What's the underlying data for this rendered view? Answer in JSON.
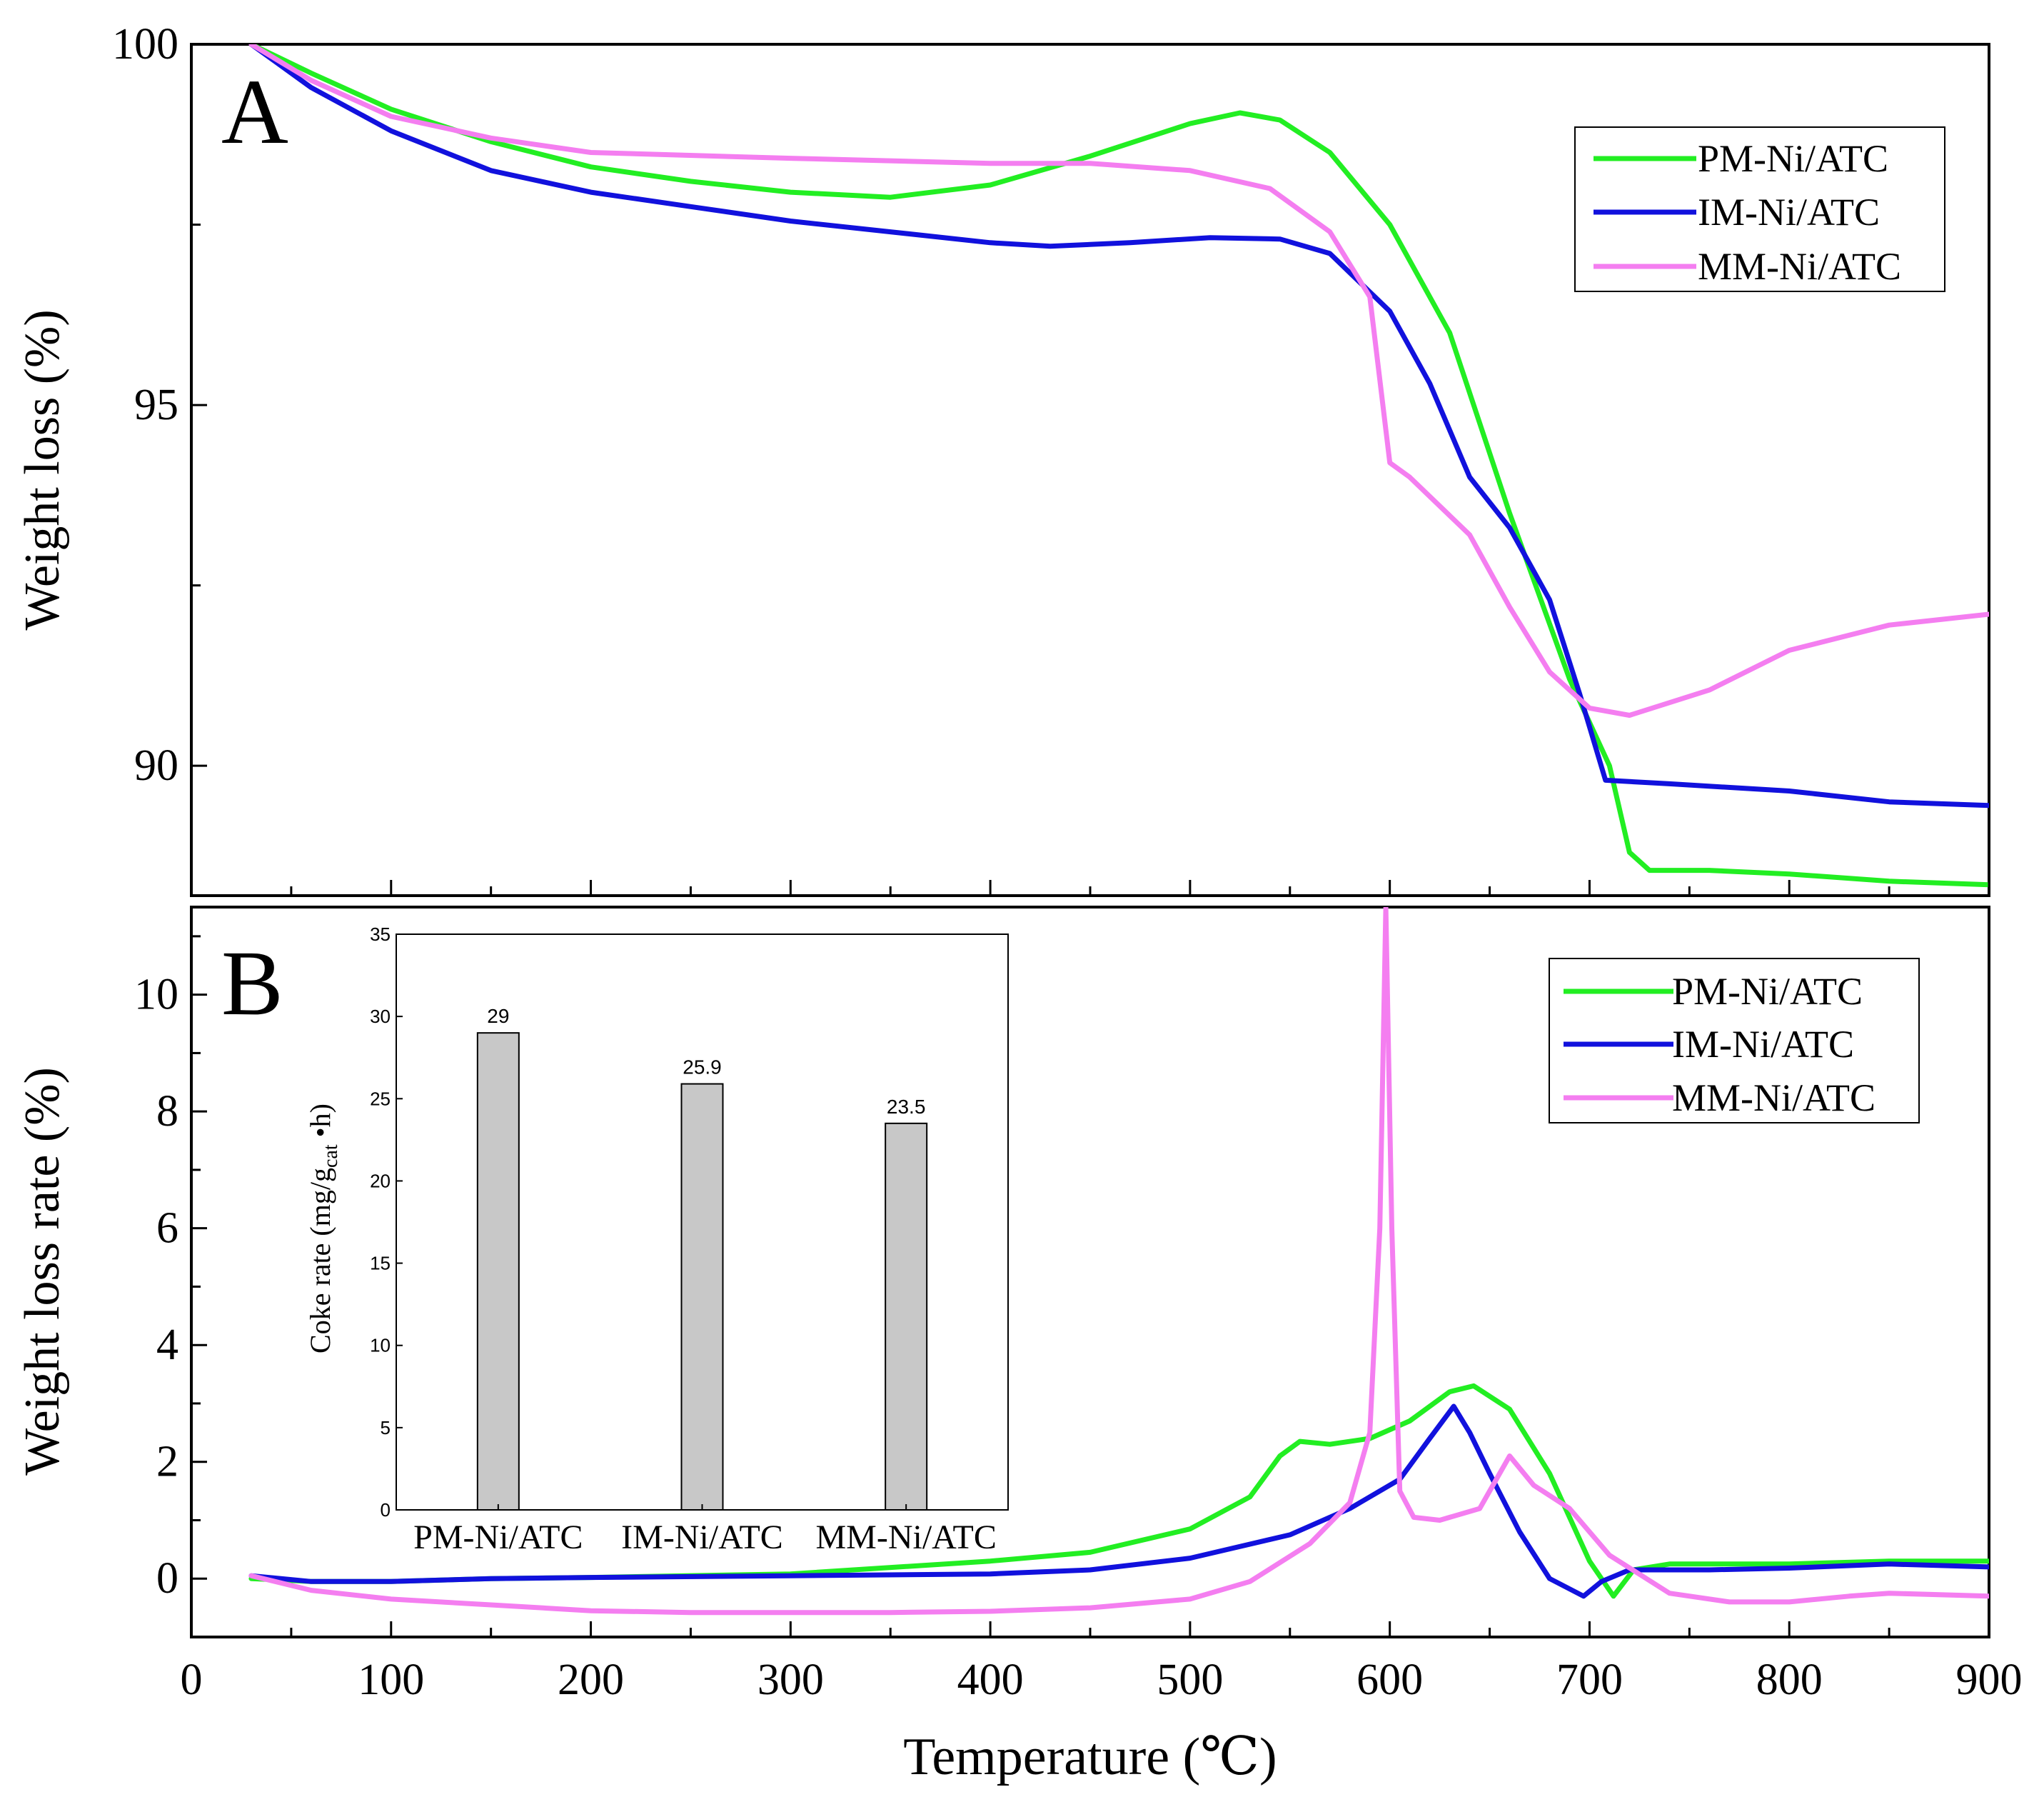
{
  "colors": {
    "pm": "#22ee22",
    "im": "#1111dd",
    "mm": "#f47ef0",
    "bar_fill": "#c8c8c8",
    "axis": "#000000"
  },
  "chart_data": [
    {
      "type": "line",
      "panel_label": "A",
      "title": "",
      "xlabel": "",
      "ylabel": "Weight loss (%)",
      "xlim": [
        0,
        900
      ],
      "ylim": [
        88.2,
        100
      ],
      "yticks": [
        "90",
        "95",
        "100"
      ],
      "legend": {
        "placement": "top-right"
      },
      "series": [
        {
          "name": "PM-Ni/ATC",
          "color_key": "pm",
          "points": [
            [
              30,
              100
            ],
            [
              60,
              99.6
            ],
            [
              100,
              99.1
            ],
            [
              150,
              98.65
            ],
            [
              200,
              98.3
            ],
            [
              250,
              98.1
            ],
            [
              300,
              97.95
            ],
            [
              350,
              97.88
            ],
            [
              400,
              98.05
            ],
            [
              450,
              98.45
            ],
            [
              500,
              98.9
            ],
            [
              525,
              99.05
            ],
            [
              545,
              98.95
            ],
            [
              570,
              98.5
            ],
            [
              600,
              97.5
            ],
            [
              630,
              96.0
            ],
            [
              660,
              93.5
            ],
            [
              690,
              91.2
            ],
            [
              710,
              90.0
            ],
            [
              720,
              88.8
            ],
            [
              730,
              88.55
            ],
            [
              760,
              88.55
            ],
            [
              800,
              88.5
            ],
            [
              850,
              88.4
            ],
            [
              900,
              88.35
            ]
          ]
        },
        {
          "name": "IM-Ni/ATC",
          "color_key": "im",
          "points": [
            [
              30,
              100
            ],
            [
              60,
              99.4
            ],
            [
              100,
              98.8
            ],
            [
              150,
              98.25
            ],
            [
              200,
              97.95
            ],
            [
              250,
              97.75
            ],
            [
              300,
              97.55
            ],
            [
              350,
              97.4
            ],
            [
              400,
              97.25
            ],
            [
              430,
              97.2
            ],
            [
              470,
              97.25
            ],
            [
              510,
              97.32
            ],
            [
              545,
              97.3
            ],
            [
              570,
              97.1
            ],
            [
              600,
              96.3
            ],
            [
              620,
              95.3
            ],
            [
              640,
              94.0
            ],
            [
              660,
              93.3
            ],
            [
              680,
              92.3
            ],
            [
              695,
              91.0
            ],
            [
              708,
              89.8
            ],
            [
              740,
              89.75
            ],
            [
              800,
              89.65
            ],
            [
              850,
              89.5
            ],
            [
              900,
              89.45
            ]
          ]
        },
        {
          "name": "MM-Ni/ATC",
          "color_key": "mm",
          "points": [
            [
              30,
              100
            ],
            [
              60,
              99.5
            ],
            [
              100,
              99.0
            ],
            [
              150,
              98.7
            ],
            [
              200,
              98.5
            ],
            [
              300,
              98.42
            ],
            [
              400,
              98.35
            ],
            [
              450,
              98.35
            ],
            [
              500,
              98.25
            ],
            [
              540,
              98.0
            ],
            [
              570,
              97.4
            ],
            [
              590,
              96.5
            ],
            [
              600,
              94.2
            ],
            [
              610,
              94.0
            ],
            [
              640,
              93.2
            ],
            [
              660,
              92.2
            ],
            [
              680,
              91.3
            ],
            [
              700,
              90.8
            ],
            [
              720,
              90.7
            ],
            [
              760,
              91.05
            ],
            [
              800,
              91.6
            ],
            [
              850,
              91.95
            ],
            [
              900,
              92.1
            ]
          ]
        }
      ]
    },
    {
      "type": "line",
      "panel_label": "B",
      "title": "",
      "xlabel": "Temperature (℃)",
      "ylabel": "Weight loss rate (%)",
      "xlim": [
        0,
        900
      ],
      "ylim": [
        -1,
        11.5
      ],
      "xticks": [
        "0",
        "100",
        "200",
        "300",
        "400",
        "500",
        "600",
        "700",
        "800",
        "900"
      ],
      "yticks": [
        "0",
        "2",
        "4",
        "6",
        "8",
        "10"
      ],
      "legend": {
        "placement": "top-right"
      },
      "series": [
        {
          "name": "PM-Ni/ATC",
          "color_key": "pm",
          "points": [
            [
              30,
              0
            ],
            [
              60,
              -0.05
            ],
            [
              100,
              -0.05
            ],
            [
              150,
              0
            ],
            [
              200,
              0.02
            ],
            [
              300,
              0.08
            ],
            [
              400,
              0.3
            ],
            [
              450,
              0.45
            ],
            [
              500,
              0.85
            ],
            [
              530,
              1.4
            ],
            [
              545,
              2.1
            ],
            [
              555,
              2.35
            ],
            [
              570,
              2.3
            ],
            [
              590,
              2.4
            ],
            [
              610,
              2.7
            ],
            [
              630,
              3.2
            ],
            [
              642,
              3.3
            ],
            [
              660,
              2.9
            ],
            [
              680,
              1.8
            ],
            [
              700,
              0.3
            ],
            [
              712,
              -0.3
            ],
            [
              722,
              0.15
            ],
            [
              740,
              0.25
            ],
            [
              800,
              0.25
            ],
            [
              850,
              0.3
            ],
            [
              900,
              0.3
            ]
          ]
        },
        {
          "name": "IM-Ni/ATC",
          "color_key": "im",
          "points": [
            [
              30,
              0.05
            ],
            [
              60,
              -0.05
            ],
            [
              100,
              -0.05
            ],
            [
              150,
              0
            ],
            [
              200,
              0.02
            ],
            [
              300,
              0.05
            ],
            [
              400,
              0.08
            ],
            [
              450,
              0.15
            ],
            [
              500,
              0.35
            ],
            [
              550,
              0.75
            ],
            [
              580,
              1.2
            ],
            [
              605,
              1.7
            ],
            [
              620,
              2.4
            ],
            [
              632,
              2.95
            ],
            [
              640,
              2.5
            ],
            [
              650,
              1.8
            ],
            [
              665,
              0.8
            ],
            [
              680,
              0.0
            ],
            [
              697,
              -0.3
            ],
            [
              706,
              -0.05
            ],
            [
              720,
              0.15
            ],
            [
              760,
              0.15
            ],
            [
              800,
              0.18
            ],
            [
              850,
              0.25
            ],
            [
              900,
              0.2
            ]
          ]
        },
        {
          "name": "MM-Ni/ATC",
          "color_key": "mm",
          "points": [
            [
              30,
              0.05
            ],
            [
              60,
              -0.2
            ],
            [
              100,
              -0.35
            ],
            [
              150,
              -0.45
            ],
            [
              200,
              -0.55
            ],
            [
              250,
              -0.58
            ],
            [
              300,
              -0.58
            ],
            [
              350,
              -0.58
            ],
            [
              400,
              -0.56
            ],
            [
              450,
              -0.5
            ],
            [
              500,
              -0.35
            ],
            [
              530,
              -0.05
            ],
            [
              560,
              0.6
            ],
            [
              580,
              1.3
            ],
            [
              590,
              2.5
            ],
            [
              595,
              6.0
            ],
            [
              598,
              11.5
            ],
            [
              601,
              6.0
            ],
            [
              605,
              1.5
            ],
            [
              612,
              1.05
            ],
            [
              625,
              1.0
            ],
            [
              645,
              1.2
            ],
            [
              660,
              2.1
            ],
            [
              672,
              1.6
            ],
            [
              690,
              1.2
            ],
            [
              710,
              0.4
            ],
            [
              740,
              -0.25
            ],
            [
              770,
              -0.4
            ],
            [
              800,
              -0.4
            ],
            [
              830,
              -0.3
            ],
            [
              850,
              -0.25
            ],
            [
              900,
              -0.3
            ]
          ]
        }
      ]
    },
    {
      "type": "bar",
      "title": "",
      "xlabel": "",
      "ylabel": "Coke rate (mg/g_cat •h)",
      "ylabel_main": "Coke rate (mg/g",
      "ylabel_sub": "cat",
      "ylabel_tail": " •h)",
      "categories": [
        "PM-Ni/ATC",
        "IM-Ni/ATC",
        "MM-Ni/ATC"
      ],
      "values": [
        29,
        25.9,
        23.5
      ],
      "value_labels": [
        "29",
        "25.9",
        "23.5"
      ],
      "ylim": [
        0,
        35
      ],
      "yticks": [
        "0",
        "5",
        "10",
        "15",
        "20",
        "25",
        "30",
        "35"
      ]
    }
  ]
}
